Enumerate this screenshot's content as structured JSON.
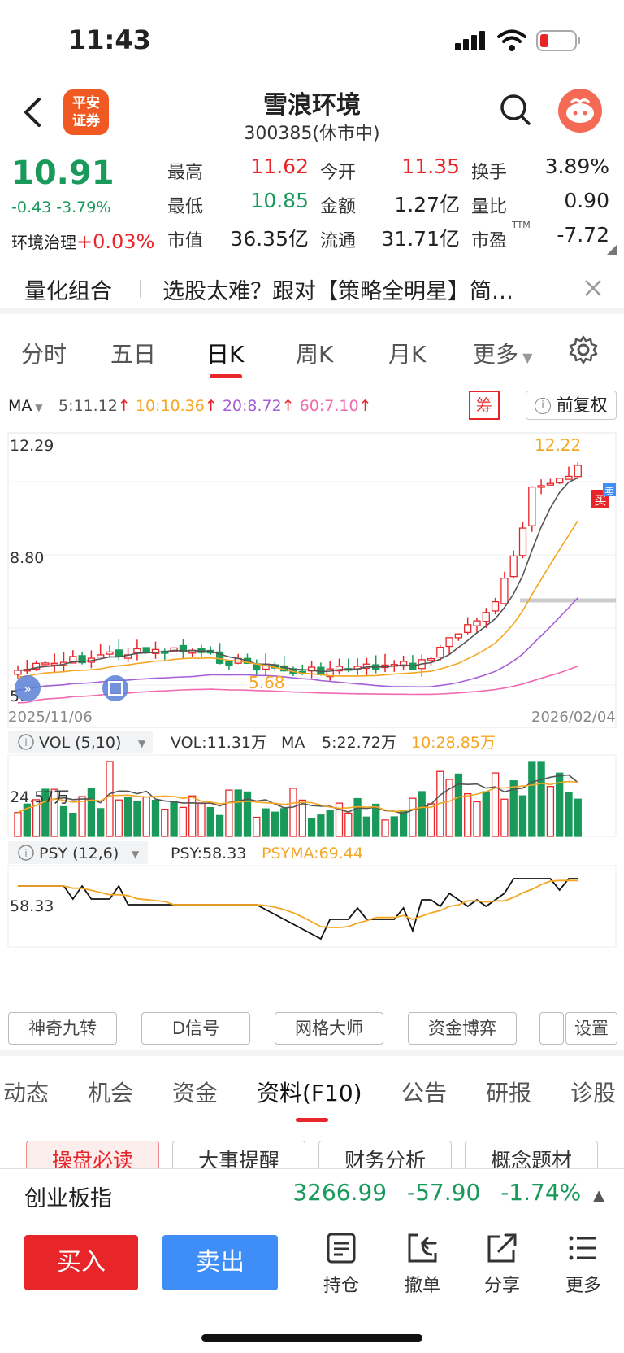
{
  "status_bar": {
    "time": "11:43"
  },
  "header": {
    "broker_logo": "平安\n证券",
    "stock_name": "雪浪环境",
    "stock_code": "300385(休市中)"
  },
  "quote": {
    "last_price": "10.91",
    "change": "-0.43  -3.79%",
    "industry_name": "环境治理",
    "industry_change": "+0.03%",
    "fields": [
      {
        "label": "最高",
        "value": "11.62",
        "color": "#e8262a"
      },
      {
        "label": "今开",
        "value": "11.35",
        "color": "#e8262a"
      },
      {
        "label": "换手",
        "value": "3.89%",
        "color": "#222222"
      },
      {
        "label": "最低",
        "value": "10.85",
        "color": "#1a9a5a"
      },
      {
        "label": "金额",
        "value": "1.27亿",
        "color": "#222222"
      },
      {
        "label": "量比",
        "value": "0.90",
        "color": "#222222"
      },
      {
        "label": "市值",
        "value": "36.35亿",
        "color": "#222222"
      },
      {
        "label": "流通",
        "value": "31.71亿",
        "color": "#222222"
      },
      {
        "label": "市盈",
        "value": "-7.72",
        "color": "#222222"
      }
    ],
    "pe_suffix": "TTM"
  },
  "banner": {
    "title": "量化组合",
    "text": "选股太难？跟对【策略全明星】简…"
  },
  "chart_tabs": [
    "分时",
    "五日",
    "日K",
    "周K",
    "月K",
    "更多"
  ],
  "active_chart_tab": 2,
  "ma_legend": {
    "label": "MA",
    "items": [
      {
        "text": "5:11.12",
        "color": "#555555"
      },
      {
        "text": "10:10.36",
        "color": "#f5a623"
      },
      {
        "text": "20:8.72",
        "color": "#a65fd6"
      },
      {
        "text": "60:7.10",
        "color": "#f06ab0"
      }
    ],
    "chip_label": "筹",
    "adjust_label": "前复权"
  },
  "kline": {
    "axis_top": "12.29",
    "axis_mid": "8.80",
    "axis_bottom": "5.",
    "high_mark": "12.22",
    "low_mark": "5.68",
    "date_start": "2025/11/06",
    "date_end": "2026/02/04",
    "buy_marker": "买",
    "sell_marker": "卖"
  },
  "volume": {
    "title": "VOL (5,10)",
    "vol_text": "VOL:11.31万",
    "ma_label": "MA",
    "ma5_text": "5:22.72万",
    "ma10_text": "10:28.85万",
    "axis_label": "24.57万"
  },
  "psy": {
    "title": "PSY (12,6)",
    "psy_text": "PSY:58.33",
    "psyma_text": "PSYMA:69.44",
    "axis_label": "58.33"
  },
  "indicator_buttons": [
    "神奇九转",
    "D信号",
    "网格大师",
    "资金博弈",
    "设置"
  ],
  "f10_tabs": [
    "动态",
    "机会",
    "资金",
    "资料(F10)",
    "公告",
    "研报",
    "诊股"
  ],
  "active_f10_tab": 3,
  "f10_sub_buttons": [
    "操盘必读",
    "大事提醒",
    "财务分析",
    "概念题材"
  ],
  "index_ticker": {
    "name": "创业板指",
    "value": "3266.99",
    "change": "-57.90",
    "pct": "-1.74%"
  },
  "bottom_bar": {
    "buy": "买入",
    "sell": "卖出",
    "actions": [
      {
        "label": "持仓",
        "icon": "holdings-icon"
      },
      {
        "label": "撤单",
        "icon": "cancel-order-icon"
      },
      {
        "label": "分享",
        "icon": "share-icon"
      },
      {
        "label": "更多",
        "icon": "more-icon"
      }
    ]
  },
  "colors": {
    "up": "#e8262a",
    "down": "#1a9a5a",
    "sell_blue": "#3f8ef8",
    "ma5": "#555555",
    "ma10": "#f5a623",
    "ma20": "#a65fd6",
    "ma60": "#f06ab0"
  }
}
